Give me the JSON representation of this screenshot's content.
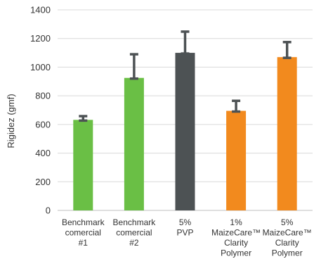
{
  "chart_data": {
    "type": "bar",
    "ylabel": "Rigidez (gmf)",
    "xlabel": "",
    "ylim": [
      0,
      1400
    ],
    "yticks": [
      0,
      200,
      400,
      600,
      800,
      1000,
      1200,
      1400
    ],
    "grid": true,
    "categories": [
      [
        "Benchmark",
        "comercial",
        "#1"
      ],
      [
        "Benchmark",
        "comercial",
        "#2"
      ],
      [
        "5%",
        "PVP"
      ],
      [
        "1%",
        "MaizeCare™",
        "Clarity",
        "Polymer"
      ],
      [
        "5%",
        "MaizeCare™",
        "Clarity",
        "Polymer"
      ]
    ],
    "values": [
      632,
      925,
      1100,
      695,
      1070
    ],
    "error_upper": [
      658,
      1090,
      1248,
      765,
      1175
    ],
    "colors": [
      "#6abf45",
      "#6abf45",
      "#4d5254",
      "#f28a1e",
      "#f28a1e"
    ],
    "error_color": "#4d5254"
  }
}
